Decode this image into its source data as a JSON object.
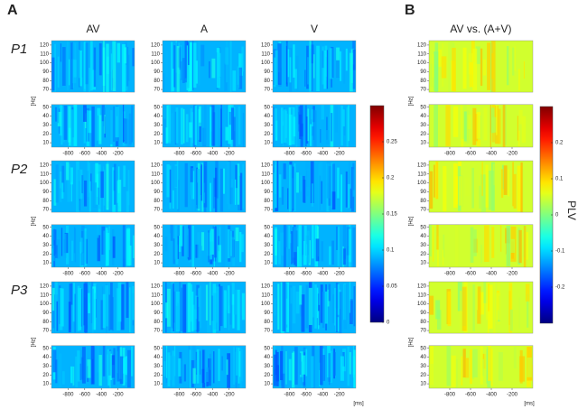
{
  "chart_data": {
    "type": "heatmap",
    "panel_labels": [
      "A",
      "B"
    ],
    "columns": [
      "AV",
      "A",
      "V",
      "AV vs. (A+V)"
    ],
    "rows": [
      "P1",
      "P2",
      "P3"
    ],
    "x_label": "[ms]",
    "y_label": "[Hz]",
    "xlim": [
      -1000,
      0
    ],
    "xticks": [
      -800,
      -600,
      -400,
      -200
    ],
    "ylim": [
      5,
      125
    ],
    "yticks": [
      10,
      20,
      30,
      40,
      50,
      70,
      80,
      90,
      100,
      110,
      120
    ],
    "colormap": "jet",
    "colorbars": [
      {
        "clim": [
          0,
          0.3
        ],
        "ticks": [
          0,
          0.05,
          0.1,
          0.15,
          0.2,
          0.25
        ]
      },
      {
        "label": "PLV",
        "clim": [
          -0.3,
          0.3
        ],
        "ticks": [
          -0.2,
          -0.1,
          0,
          0.1,
          0.2
        ]
      }
    ]
  }
}
